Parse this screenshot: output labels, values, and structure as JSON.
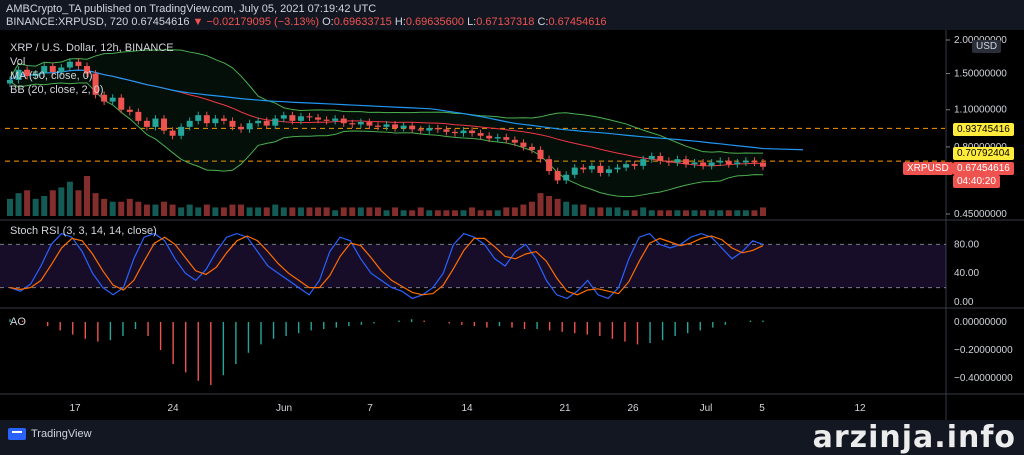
{
  "header": {
    "publisher_line": "AMBCrypto_TA published on TradingView.com, July 05, 2021 07:19:42 UTC",
    "symbol": "BINANCE:XRPUSD, 720",
    "last": "0.67454616",
    "change": "▼ −0.02179095 (−3.13%)",
    "o_label": "O:",
    "o_val": "0.69633715",
    "h_label": "H:",
    "h_val": "0.69635600",
    "l_label": "L:",
    "l_val": "0.67137318",
    "c_label": "C:",
    "c_val": "0.67454616"
  },
  "legend": {
    "title": "XRP / U.S. Dollar, 12h, BINANCE",
    "vol": "Vol",
    "ma": "MA (50, close, 0)",
    "bb": "BB (20, close, 2, 0)",
    "stoch": "Stoch RSI (3, 3, 14, 14, close)",
    "ao": "AO"
  },
  "price_tags": {
    "currency": "USD",
    "tag1": "0.93745416",
    "tag2": "0.70792404",
    "symbol_tag": "XRPUSD",
    "current": "0.67454616",
    "countdown": "04:40:20"
  },
  "footer": {
    "brand": "TradingView",
    "watermark": "arzinja.info"
  },
  "colors": {
    "up": "#26a69a",
    "down": "#ef5350",
    "ma": "#f23645",
    "bb": "#4caf50",
    "k": "#2962ff",
    "d": "#ff6d00",
    "level": "#ff9800"
  },
  "chart_data": {
    "type": "candlestick",
    "x_ticks": [
      "17",
      "24",
      "Jun",
      "7",
      "14",
      "21",
      "26",
      "Jul",
      "5",
      "12"
    ],
    "price_axis": {
      "ticks": [
        "2.00000000",
        "1.50000000",
        "1.10000000",
        "0.80000000",
        "0.45000000"
      ],
      "ylim": [
        0.45,
        2.0
      ],
      "scale": "log"
    },
    "horizontal_levels": [
      0.93745416,
      0.70792404
    ],
    "close_series": [
      1.42,
      1.55,
      1.47,
      1.5,
      1.6,
      1.52,
      1.58,
      1.66,
      1.6,
      1.5,
      1.25,
      1.18,
      1.22,
      1.1,
      1.08,
      1.0,
      0.95,
      1.02,
      0.92,
      0.88,
      0.95,
      1.0,
      1.05,
      0.98,
      1.02,
      1.0,
      0.95,
      0.93,
      0.98,
      1.0,
      0.96,
      1.02,
      1.05,
      1.0,
      1.04,
      1.03,
      1.01,
      1.0,
      1.02,
      0.98,
      0.97,
      0.99,
      0.96,
      0.95,
      0.97,
      0.94,
      0.96,
      0.93,
      0.92,
      0.94,
      0.93,
      0.91,
      0.9,
      0.92,
      0.9,
      0.88,
      0.86,
      0.87,
      0.85,
      0.83,
      0.8,
      0.78,
      0.72,
      0.65,
      0.6,
      0.63,
      0.67,
      0.66,
      0.68,
      0.64,
      0.66,
      0.67,
      0.69,
      0.68,
      0.72,
      0.74,
      0.71,
      0.7,
      0.72,
      0.69,
      0.7,
      0.68,
      0.7,
      0.71,
      0.69,
      0.7,
      0.71,
      0.7,
      0.675
    ],
    "volume_series": [
      6,
      8,
      9,
      6,
      7,
      9,
      10,
      12,
      9,
      14,
      8,
      6,
      5,
      5,
      6,
      5,
      4,
      4,
      5,
      4,
      3,
      4,
      3,
      4,
      3,
      3,
      4,
      4,
      3,
      3,
      3,
      4,
      3,
      3,
      3,
      3,
      3,
      3,
      2,
      3,
      3,
      3,
      3,
      3,
      2,
      3,
      2,
      2,
      3,
      2,
      2,
      2,
      2,
      2,
      3,
      2,
      2,
      2,
      3,
      3,
      4,
      5,
      8,
      7,
      6,
      5,
      4,
      4,
      3,
      3,
      3,
      3,
      2,
      2,
      3,
      2,
      2,
      2,
      2,
      2,
      2,
      2,
      2,
      2,
      2,
      2,
      2,
      2,
      3
    ],
    "stoch_rsi": {
      "levels": [
        80,
        20
      ],
      "ticks": [
        "80.00",
        "40.00",
        "0.00"
      ],
      "k": [
        20,
        15,
        25,
        50,
        80,
        95,
        90,
        70,
        40,
        20,
        10,
        20,
        60,
        90,
        95,
        85,
        60,
        40,
        30,
        45,
        70,
        90,
        95,
        90,
        70,
        50,
        40,
        30,
        20,
        10,
        30,
        70,
        90,
        85,
        60,
        40,
        30,
        20,
        15,
        5,
        10,
        20,
        40,
        80,
        95,
        90,
        80,
        60,
        50,
        70,
        80,
        60,
        30,
        10,
        5,
        15,
        30,
        10,
        5,
        20,
        60,
        90,
        95,
        80,
        75,
        80,
        90,
        95,
        90,
        75,
        60,
        70,
        85,
        80
      ]
    },
    "ao": {
      "ticks": [
        "0.00000000",
        "−0.20000000",
        "−0.40000000"
      ],
      "values": [
        0.02,
        0.01,
        0.0,
        -0.03,
        -0.06,
        -0.09,
        -0.12,
        -0.14,
        -0.13,
        -0.1,
        -0.05,
        -0.1,
        -0.2,
        -0.3,
        -0.36,
        -0.42,
        -0.45,
        -0.38,
        -0.3,
        -0.22,
        -0.16,
        -0.12,
        -0.1,
        -0.08,
        -0.06,
        -0.05,
        -0.04,
        -0.03,
        -0.02,
        -0.01,
        0.0,
        0.01,
        0.02,
        0.01,
        0.0,
        -0.01,
        -0.02,
        -0.03,
        -0.04,
        -0.03,
        -0.04,
        -0.05,
        -0.05,
        -0.06,
        -0.07,
        -0.08,
        -0.09,
        -0.1,
        -0.12,
        -0.14,
        -0.16,
        -0.15,
        -0.13,
        -0.1,
        -0.08,
        -0.06,
        -0.04,
        -0.02,
        0.0,
        0.01,
        0.01
      ]
    }
  }
}
